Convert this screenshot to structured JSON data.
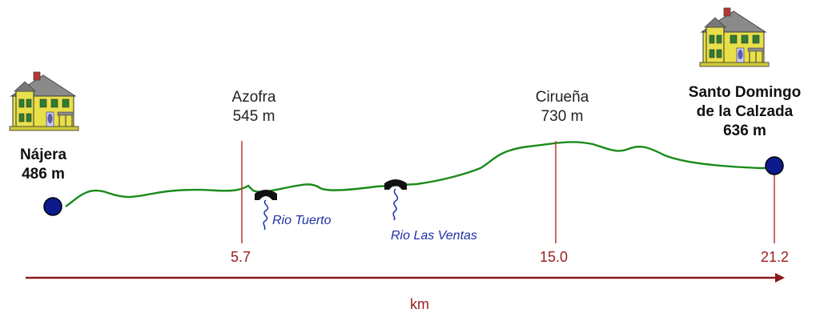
{
  "towns": [
    {
      "name": "Nájera",
      "elevation": "486 m",
      "km": "",
      "bold": true
    },
    {
      "name": "Azofra",
      "elevation": "545 m",
      "km": "5.7",
      "bold": false
    },
    {
      "name": "Cirueña",
      "elevation": "730 m",
      "km": "15.0",
      "bold": false
    },
    {
      "name": "Santo Domingo de la Calzada",
      "name_line1": "Santo Domingo",
      "name_line2": "de la Calzada",
      "elevation": "636 m",
      "km": "21.2",
      "bold": true
    }
  ],
  "rivers": [
    {
      "name": "Rio Tuerto"
    },
    {
      "name": "Rio Las Ventas"
    }
  ],
  "axis": {
    "unit": "km"
  },
  "colors": {
    "profile": "#1a8a1a",
    "marker_line": "#c0392b",
    "axis": "#8b1a1a",
    "endpoint": "#0b1a8c",
    "river": "#1f2fa8"
  },
  "icons": [
    "house-icon",
    "bridge-icon"
  ]
}
